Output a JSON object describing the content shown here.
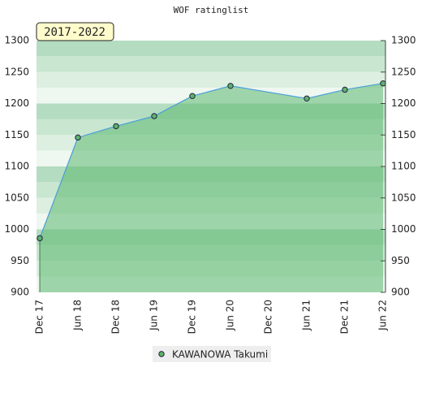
{
  "chart_data": {
    "type": "line",
    "title": "WOF ratinglist",
    "badge": "2017-2022",
    "categories": [
      "Dec 17",
      "Jun 18",
      "Dec 18",
      "Jun 19",
      "Dec 19",
      "Jun 20",
      "Dec 20",
      "Jun 21",
      "Dec 21",
      "Jun 22"
    ],
    "series": [
      {
        "name": "KAWANOWA Takumi",
        "color": "#4a9fd8",
        "marker_color": "#5cb36a",
        "x": [
          "Dec 17",
          "Jun 18",
          "Dec 18",
          "Jun 19",
          "Dec 19",
          "Jun 20",
          "Jun 21",
          "Dec 21",
          "Jun 22"
        ],
        "values": [
          986,
          1146,
          1164,
          1180,
          1212,
          1228,
          1208,
          1222,
          1232
        ]
      }
    ],
    "ylim": [
      900,
      1300
    ],
    "yticks": [
      900,
      950,
      1000,
      1050,
      1100,
      1150,
      1200,
      1250,
      1300
    ],
    "y2lim": [
      900,
      1300
    ],
    "y2ticks": [
      900,
      950,
      1000,
      1050,
      1100,
      1150,
      1200,
      1250,
      1300
    ],
    "area_color": "#5cb870"
  }
}
